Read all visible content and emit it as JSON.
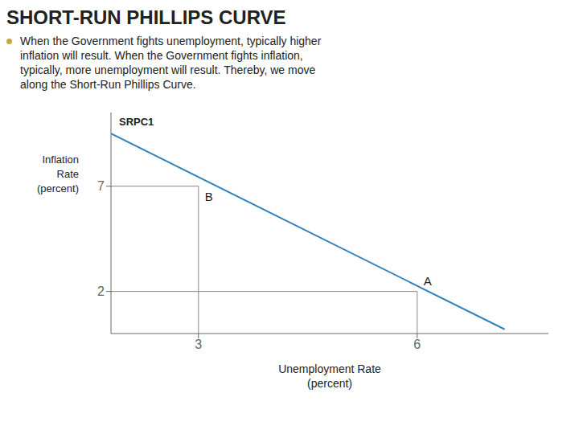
{
  "chart_data": {
    "type": "line",
    "title": "SHORT-RUN PHILLIPS CURVE",
    "subtitle": "When the Government fights unemployment, typically higher\ninflation will result.  When the Government fights inflation,\ntypically, more unemployment will result. Thereby, we move\nalong the Short-Run Phillips Curve.",
    "x_label": "Unemployment Rate\n(percent)",
    "y_label": "Inflation\nRate\n(percent)",
    "x": [
      1.8,
      7.2
    ],
    "series": [
      {
        "name": "SRPC1",
        "values": [
          9.5,
          0.2
        ]
      }
    ],
    "points": [
      {
        "label": "A",
        "x": 6,
        "y": 2
      },
      {
        "label": "B",
        "x": 3,
        "y": 7
      }
    ],
    "xlim": [
      1.8,
      7.8
    ],
    "ylim": [
      0,
      10.5
    ],
    "xticks": [
      3,
      6
    ],
    "yticks": [
      2,
      7
    ],
    "grid": false
  }
}
